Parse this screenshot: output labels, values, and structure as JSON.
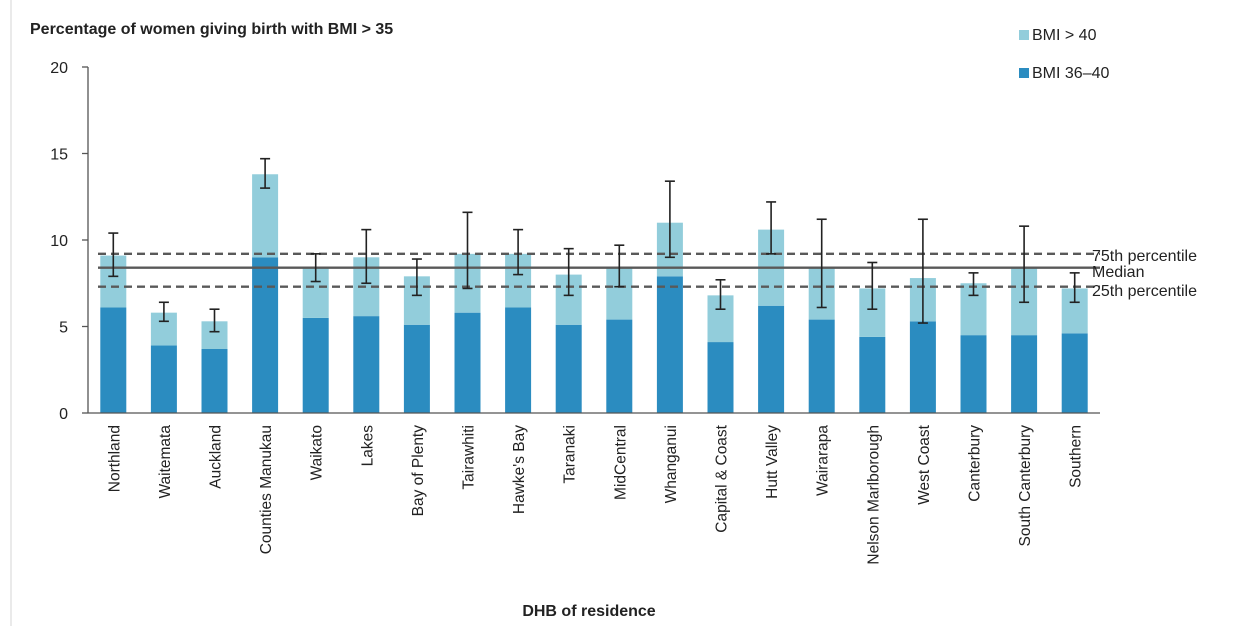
{
  "colors": {
    "bmi36_40": "#2b8cc0",
    "bmi40": "#92cddb",
    "axis": "#555555",
    "median": "#595959",
    "percentile": "#595959",
    "errorbar": "#222222",
    "left_border": "#d0d0d0"
  },
  "chart_data": {
    "type": "bar",
    "stacked": true,
    "title": "Percentage of women giving birth with BMI > 35",
    "xlabel": "DHB of residence",
    "ylabel": "",
    "ylim": [
      0,
      20
    ],
    "yticks": [
      0,
      5,
      10,
      15,
      20
    ],
    "ytick_labels": [
      "0",
      "5",
      "10",
      "15",
      "20"
    ],
    "grid": false,
    "legend_position": "top-right",
    "categories": [
      "Northland",
      "Waitemata",
      "Auckland",
      "Counties Manukau",
      "Waikato",
      "Lakes",
      "Bay of Plenty",
      "Tairawhiti",
      "Hawke's Bay",
      "Taranaki",
      "MidCentral",
      "Whanganui",
      "Capital & Coast",
      "Hutt Valley",
      "Wairarapa",
      "Nelson Marlborough",
      "West Coast",
      "Canterbury",
      "South Canterbury",
      "Southern"
    ],
    "series": [
      {
        "name": "BMI 36–40",
        "values": [
          6.1,
          3.9,
          3.7,
          9.0,
          5.5,
          5.6,
          5.1,
          5.8,
          6.1,
          5.1,
          5.4,
          7.9,
          4.1,
          6.2,
          5.4,
          4.4,
          5.3,
          4.5,
          4.5,
          4.6
        ]
      },
      {
        "name": "BMI > 40",
        "values": [
          3.0,
          1.9,
          1.6,
          4.8,
          2.9,
          3.4,
          2.8,
          3.4,
          3.1,
          2.9,
          3.0,
          3.1,
          2.7,
          4.4,
          3.0,
          2.8,
          2.5,
          3.0,
          3.9,
          2.6
        ]
      }
    ],
    "error_bars": {
      "low": [
        7.9,
        5.3,
        4.7,
        13.0,
        7.6,
        7.5,
        6.8,
        7.2,
        8.0,
        6.8,
        7.3,
        9.0,
        6.0,
        9.2,
        6.1,
        6.0,
        5.2,
        6.8,
        6.4,
        6.4
      ],
      "high": [
        10.4,
        6.4,
        6.0,
        14.7,
        9.2,
        10.6,
        8.9,
        11.6,
        10.6,
        9.5,
        9.7,
        13.4,
        7.7,
        12.2,
        11.2,
        8.7,
        11.2,
        8.1,
        10.8,
        8.1
      ]
    },
    "reference_lines": [
      {
        "label": "75th percentile",
        "value": 9.2,
        "style": "dashed"
      },
      {
        "label": "Median",
        "value": 8.4,
        "style": "solid"
      },
      {
        "label": "25th percentile",
        "value": 7.3,
        "style": "dashed"
      }
    ],
    "legend": [
      {
        "label": "BMI > 40",
        "series": "bmi40"
      },
      {
        "label": "BMI 36–40",
        "series": "bmi36_40"
      }
    ]
  }
}
